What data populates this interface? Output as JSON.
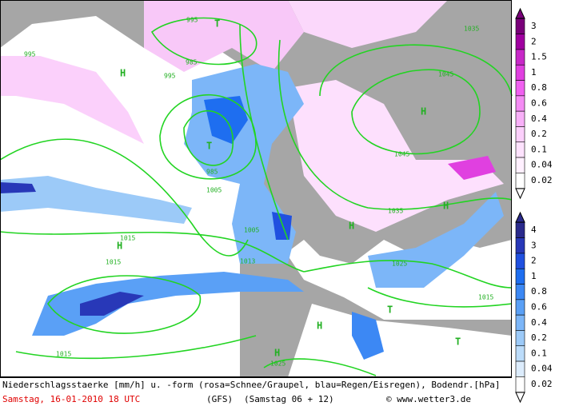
{
  "map": {
    "caption": "Niederschlagsstaerke [mm/h] u. -form (rosa=Schnee/Graupel, blau=Regen/Eisregen), Bodendr.[hPa]",
    "date": "Samstag, 16-01-2010  18 UTC",
    "model": "(GFS)",
    "run": "(Samstag 06 + 12)",
    "source": "© www.wetter3.de",
    "centers": [
      "T",
      "H",
      "T",
      "H",
      "H",
      "H",
      "T",
      "T",
      "H",
      "H",
      "H"
    ],
    "pressure_labels": [
      "995",
      "985",
      "995",
      "995",
      "985",
      "1005",
      "1015",
      "1005",
      "1013",
      "1015",
      "1035",
      "1045",
      "1045",
      "1035",
      "1025",
      "1015",
      "1015",
      "1025"
    ],
    "snow_scale": {
      "labels": [
        "3",
        "2",
        "1.5",
        "1",
        "0.8",
        "0.6",
        "0.4",
        "0.2",
        "0.1",
        "0.04",
        "0.02"
      ],
      "colors": [
        "#7a007a",
        "#a000a0",
        "#c828c8",
        "#e040e0",
        "#f060f0",
        "#f48cf4",
        "#f8b0f8",
        "#fbd0fb",
        "#fde2fd",
        "#fff0ff",
        "#ffffff"
      ]
    },
    "rain_scale": {
      "labels": [
        "4",
        "3",
        "2",
        "1",
        "0.8",
        "0.6",
        "0.4",
        "0.2",
        "0.1",
        "0.04",
        "0.02"
      ],
      "colors": [
        "#2a2a8c",
        "#2838b8",
        "#2050e0",
        "#1e6ef0",
        "#3c88f4",
        "#5aa0f6",
        "#7cb6f8",
        "#9ccaf8",
        "#bcdcfa",
        "#dcecfc",
        "#ffffff"
      ]
    }
  }
}
